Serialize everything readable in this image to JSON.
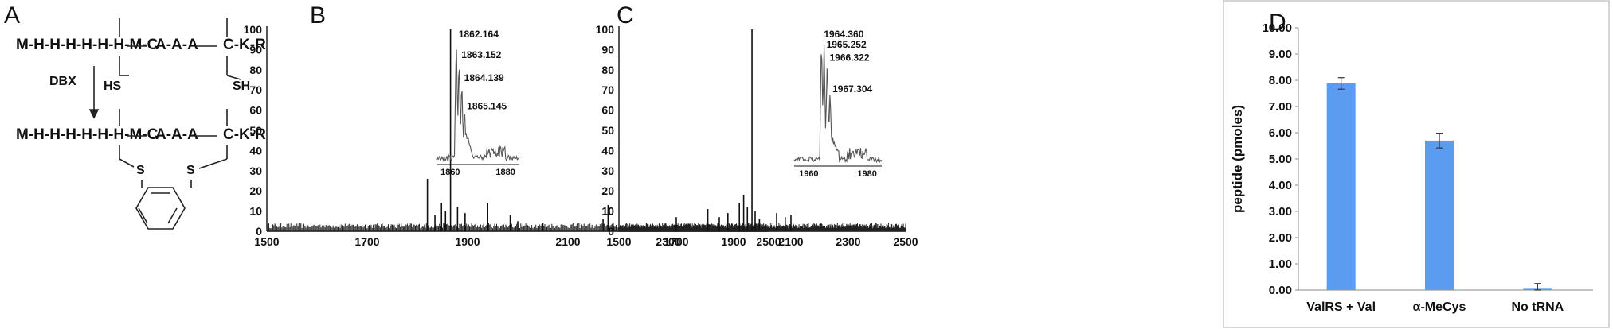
{
  "panels": {
    "a": {
      "letter": "A"
    },
    "b": {
      "letter": "B"
    },
    "c": {
      "letter": "C"
    },
    "d": {
      "letter": "D"
    }
  },
  "scheme": {
    "chain": "M-H-H-H-H-H-H-M-",
    "cys": "C",
    "ala": "A-A-A",
    "end": "-K-R",
    "hs": "HS",
    "sh": "SH",
    "reagent": "DBX",
    "s": "S"
  },
  "chart_data": [
    {
      "type": "line",
      "panel": "B",
      "x_ticks": [
        1500,
        1700,
        1900,
        2100,
        2300,
        2500
      ],
      "y_ticks": [
        0,
        10,
        20,
        30,
        40,
        50,
        60,
        70,
        80,
        90,
        100
      ],
      "xlim": [
        1500,
        2500
      ],
      "ylim": [
        0,
        100
      ],
      "peaks": [
        [
          1820,
          26
        ],
        [
          1835,
          8
        ],
        [
          1848,
          14
        ],
        [
          1856,
          10
        ],
        [
          1866,
          100
        ],
        [
          1880,
          12
        ],
        [
          1895,
          9
        ],
        [
          1940,
          14
        ],
        [
          1985,
          8
        ],
        [
          2000,
          5
        ],
        [
          2050,
          4
        ],
        [
          2170,
          6
        ],
        [
          2180,
          13
        ],
        [
          2190,
          4
        ]
      ],
      "inset": {
        "x_ticks": [
          1860,
          1880
        ],
        "xlim": [
          1855,
          1885
        ],
        "labels": [
          "1862.164",
          "1863.152",
          "1864.139",
          "1865.145"
        ],
        "label_x": [
          1862.164,
          1863.152,
          1864.139,
          1865.145
        ],
        "label_y": [
          100,
          84,
          66,
          44
        ]
      }
    },
    {
      "type": "line",
      "panel": "C",
      "x_ticks": [
        1500,
        1700,
        1900,
        2100,
        2300,
        2500
      ],
      "y_ticks": [
        0,
        10,
        20,
        30,
        40,
        50,
        60,
        70,
        80,
        90,
        100
      ],
      "xlim": [
        1500,
        2500
      ],
      "ylim": [
        0,
        100
      ],
      "peaks": [
        [
          1700,
          7
        ],
        [
          1810,
          11
        ],
        [
          1850,
          7
        ],
        [
          1880,
          9
        ],
        [
          1920,
          14
        ],
        [
          1935,
          18
        ],
        [
          1948,
          12
        ],
        [
          1964,
          100
        ],
        [
          1975,
          10
        ],
        [
          1990,
          6
        ],
        [
          2050,
          9
        ],
        [
          2080,
          7
        ],
        [
          2100,
          8
        ],
        [
          2160,
          4
        ]
      ],
      "inset": {
        "x_ticks": [
          1960,
          1980
        ],
        "xlim": [
          1955,
          1985
        ],
        "labels": [
          "1964.360",
          "1965.252",
          "1966.322",
          "1967.304"
        ],
        "label_x": [
          1964.36,
          1965.252,
          1966.322,
          1967.304
        ],
        "label_y": [
          100,
          92,
          82,
          58
        ]
      }
    },
    {
      "type": "bar",
      "panel": "D",
      "categories": [
        "ValRS + Val",
        "α-MeCys",
        "No tRNA"
      ],
      "values": [
        7.88,
        5.7,
        0.05
      ],
      "errors": [
        0.22,
        0.28,
        0.2
      ],
      "ylabel": "peptide (pmoles)",
      "y_ticks": [
        "0.00",
        "1.00",
        "2.00",
        "3.00",
        "4.00",
        "5.00",
        "6.00",
        "7.00",
        "8.00",
        "9.00",
        "10.00"
      ],
      "ylim": [
        0,
        10
      ],
      "bar_color": "#5b9cf0"
    }
  ]
}
